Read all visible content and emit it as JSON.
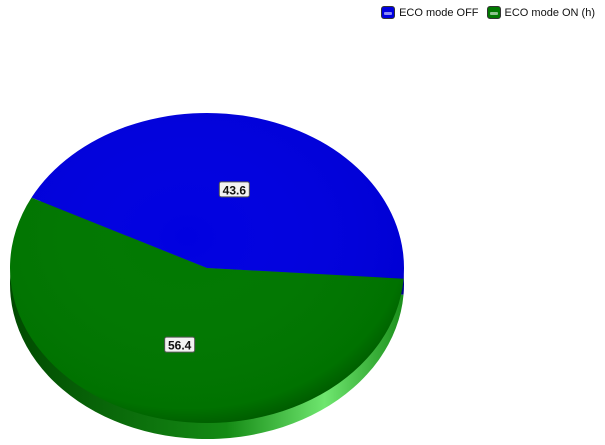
{
  "chart_data": {
    "type": "pie",
    "title": "",
    "categories": [
      "ECO mode OFF",
      "ECO mode ON (h)"
    ],
    "values": [
      43.6,
      56.4
    ],
    "data_labels": [
      "43.6",
      "56.4"
    ],
    "colors": [
      "#0000e0",
      "#007800"
    ],
    "legend_placement": "top-right",
    "style": "3d"
  }
}
